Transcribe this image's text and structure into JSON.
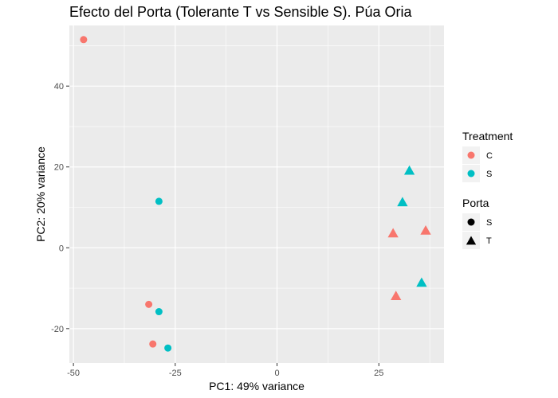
{
  "chart_data": {
    "type": "scatter",
    "title": "Efecto del Porta (Tolerante T vs Sensible S). Púa Oria",
    "xlabel": "PC1: 49% variance",
    "ylabel": "PC2: 20% variance",
    "xlim": [
      -51,
      41
    ],
    "ylim": [
      -28.5,
      55
    ],
    "xticks": [
      -50,
      -25,
      0,
      25
    ],
    "yticks": [
      -20,
      0,
      20,
      40
    ],
    "xtick_labels": [
      "-50",
      "-25",
      "0",
      "25"
    ],
    "ytick_labels": [
      "-20",
      "0",
      "20",
      "40"
    ],
    "grid": true,
    "legend_position": "right",
    "legends": [
      {
        "title": "Treatment",
        "kind": "color",
        "entries": [
          {
            "label": "C",
            "color": "#F8766D"
          },
          {
            "label": "S",
            "color": "#00BFC4"
          }
        ]
      },
      {
        "title": "Porta",
        "kind": "shape",
        "entries": [
          {
            "label": "S",
            "shape": "circle"
          },
          {
            "label": "T",
            "shape": "triangle"
          }
        ]
      }
    ],
    "points": [
      {
        "x": -47.5,
        "y": 51.5,
        "treatment": "C",
        "porta": "S"
      },
      {
        "x": -31.5,
        "y": -14.0,
        "treatment": "C",
        "porta": "S"
      },
      {
        "x": -30.5,
        "y": -23.8,
        "treatment": "C",
        "porta": "S"
      },
      {
        "x": -29.0,
        "y": 11.5,
        "treatment": "S",
        "porta": "S"
      },
      {
        "x": -29.0,
        "y": -15.8,
        "treatment": "S",
        "porta": "S"
      },
      {
        "x": -26.8,
        "y": -24.8,
        "treatment": "S",
        "porta": "S"
      },
      {
        "x": 28.5,
        "y": 3.5,
        "treatment": "C",
        "porta": "T"
      },
      {
        "x": 36.5,
        "y": 4.2,
        "treatment": "C",
        "porta": "T"
      },
      {
        "x": 29.2,
        "y": -12.0,
        "treatment": "C",
        "porta": "T"
      },
      {
        "x": 32.5,
        "y": 19.0,
        "treatment": "S",
        "porta": "T"
      },
      {
        "x": 30.8,
        "y": 11.2,
        "treatment": "S",
        "porta": "T"
      },
      {
        "x": 35.5,
        "y": -8.7,
        "treatment": "S",
        "porta": "T"
      }
    ],
    "colors": {
      "panel_background": "#EBEBEB",
      "grid_major": "#FFFFFF",
      "legend_key_background": "#F2F2F2",
      "treatment_C": "#F8766D",
      "treatment_S": "#00BFC4"
    }
  }
}
